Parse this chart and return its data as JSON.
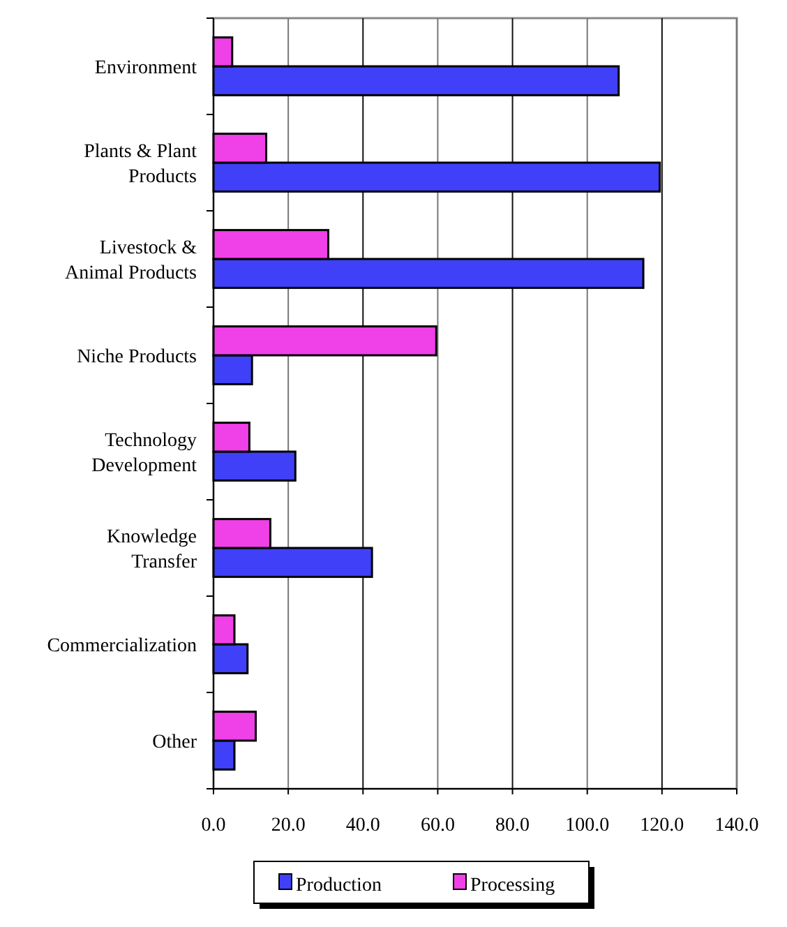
{
  "chart_data": {
    "type": "bar",
    "orientation": "horizontal",
    "categories": [
      "Environment",
      "Plants & Plant Products",
      "Livestock & Animal Products",
      "Niche Products",
      "Technology Development",
      "Knowledge Transfer",
      "Commercialization",
      "Other"
    ],
    "series": [
      {
        "name": "Production",
        "color": "#4040f8",
        "values": [
          108.4,
          119.4,
          115.0,
          10.3,
          21.9,
          42.4,
          9.1,
          5.6
        ]
      },
      {
        "name": "Processing",
        "color": "#f040e8",
        "values": [
          5.0,
          14.1,
          30.7,
          59.6,
          9.6,
          15.2,
          5.6,
          11.3
        ]
      }
    ],
    "xlim": [
      0,
      140
    ],
    "xticks": [
      {
        "value": 0,
        "label": "0.0"
      },
      {
        "value": 20,
        "label": "20.0"
      },
      {
        "value": 40,
        "label": "40.0"
      },
      {
        "value": 60,
        "label": "60.0"
      },
      {
        "value": 80,
        "label": "80.0"
      },
      {
        "value": 100,
        "label": "100.0"
      },
      {
        "value": 120,
        "label": "120.0"
      },
      {
        "value": 140,
        "label": "140.0"
      }
    ],
    "grid": "x",
    "legend": "bottom"
  }
}
